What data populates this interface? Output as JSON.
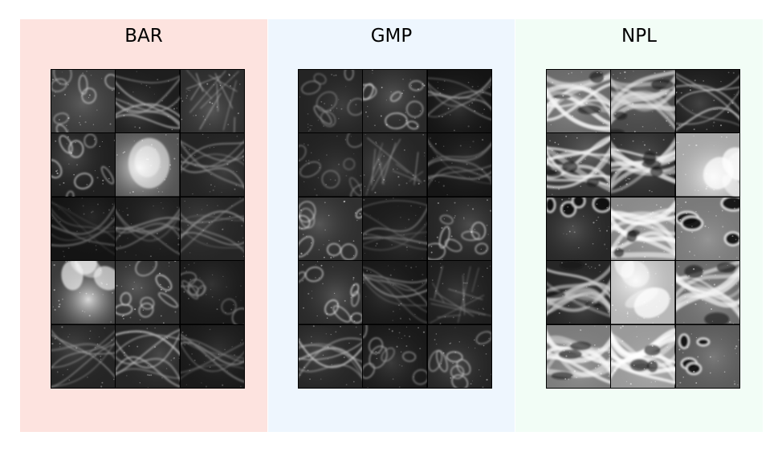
{
  "panels": [
    {
      "title": "BAR",
      "bg": "#fde3df",
      "tiles": [
        {
          "base": "#3a3a3a",
          "light": "#d8d8d8",
          "shapes": "cells"
        },
        {
          "base": "#1e1e1e",
          "light": "#bdbdbd",
          "shapes": "fibers"
        },
        {
          "base": "#2e2e2e",
          "light": "#e6e6e6",
          "shapes": "web"
        },
        {
          "base": "#202020",
          "light": "#e0e0e0",
          "shapes": "cells"
        },
        {
          "base": "#555555",
          "light": "#ffffff",
          "shapes": "blob"
        },
        {
          "base": "#242424",
          "light": "#9a9a9a",
          "shapes": "fibers"
        },
        {
          "base": "#141414",
          "light": "#6e6e6e",
          "shapes": "fibers"
        },
        {
          "base": "#1c1c1c",
          "light": "#8a8a8a",
          "shapes": "fibers"
        },
        {
          "base": "#262626",
          "light": "#a0a0a0",
          "shapes": "fibers"
        },
        {
          "base": "#3c3c3c",
          "light": "#f4f4f4",
          "shapes": "bright"
        },
        {
          "base": "#303030",
          "light": "#eeeeee",
          "shapes": "cells"
        },
        {
          "base": "#1a1a1a",
          "light": "#8c8c8c",
          "shapes": "cells"
        },
        {
          "base": "#252525",
          "light": "#b5b5b5",
          "shapes": "fibers"
        },
        {
          "base": "#262626",
          "light": "#c0c0c0",
          "shapes": "fibers"
        },
        {
          "base": "#1a1a1a",
          "light": "#8a8a8a",
          "shapes": "fibers"
        }
      ]
    },
    {
      "title": "GMP",
      "bg": "#eef6fe",
      "tiles": [
        {
          "base": "#242424",
          "light": "#9a9a9a",
          "shapes": "cells"
        },
        {
          "base": "#2a2a2a",
          "light": "#e6e6e6",
          "shapes": "cells"
        },
        {
          "base": "#141414",
          "light": "#aaaaaa",
          "shapes": "fibers"
        },
        {
          "base": "#222222",
          "light": "#8c8c8c",
          "shapes": "cells"
        },
        {
          "base": "#262626",
          "light": "#b8b8b8",
          "shapes": "web"
        },
        {
          "base": "#161616",
          "light": "#8a8a8a",
          "shapes": "fibers"
        },
        {
          "base": "#303030",
          "light": "#e2e2e2",
          "shapes": "cells"
        },
        {
          "base": "#1c1c1c",
          "light": "#7a7a7a",
          "shapes": "fibers"
        },
        {
          "base": "#262626",
          "light": "#d4d4d4",
          "shapes": "cells"
        },
        {
          "base": "#2a2a2a",
          "light": "#e6e6e6",
          "shapes": "cells"
        },
        {
          "base": "#181818",
          "light": "#8a8a8a",
          "shapes": "fibers"
        },
        {
          "base": "#1e1e1e",
          "light": "#a4a4a4",
          "shapes": "web"
        },
        {
          "base": "#262626",
          "light": "#c4c4c4",
          "shapes": "fibers"
        },
        {
          "base": "#1a1a1a",
          "light": "#b0b0b0",
          "shapes": "cells"
        },
        {
          "base": "#242424",
          "light": "#cfcfcf",
          "shapes": "cells"
        }
      ]
    },
    {
      "title": "NPL",
      "bg": "#f2fdf6",
      "tiles": [
        {
          "base": "#6a6a6a",
          "light": "#f6f6f6",
          "shapes": "tissue"
        },
        {
          "base": "#4a4a4a",
          "light": "#e8e8e8",
          "shapes": "tissue"
        },
        {
          "base": "#1c1c1c",
          "light": "#d0d0d0",
          "shapes": "fibers"
        },
        {
          "base": "#3a3a3a",
          "light": "#f0f0f0",
          "shapes": "tissue"
        },
        {
          "base": "#2e2e2e",
          "light": "#f2f2f2",
          "shapes": "tissue"
        },
        {
          "base": "#a8a8a8",
          "light": "#ffffff",
          "shapes": "bright"
        },
        {
          "base": "#282828",
          "light": "#dcdcdc",
          "shapes": "holes"
        },
        {
          "base": "#8a8a8a",
          "light": "#ffffff",
          "shapes": "tissue"
        },
        {
          "base": "#7a7a7a",
          "light": "#f4f4f4",
          "shapes": "holes"
        },
        {
          "base": "#262626",
          "light": "#cccccc",
          "shapes": "tissue"
        },
        {
          "base": "#b8b8b8",
          "light": "#ffffff",
          "shapes": "bright"
        },
        {
          "base": "#6c6c6c",
          "light": "#f6f6f6",
          "shapes": "tissue"
        },
        {
          "base": "#7c7c7c",
          "light": "#f8f8f8",
          "shapes": "tissue"
        },
        {
          "base": "#9a9a9a",
          "light": "#ffffff",
          "shapes": "tissue"
        },
        {
          "base": "#5a5a5a",
          "light": "#ececec",
          "shapes": "holes"
        }
      ]
    }
  ]
}
